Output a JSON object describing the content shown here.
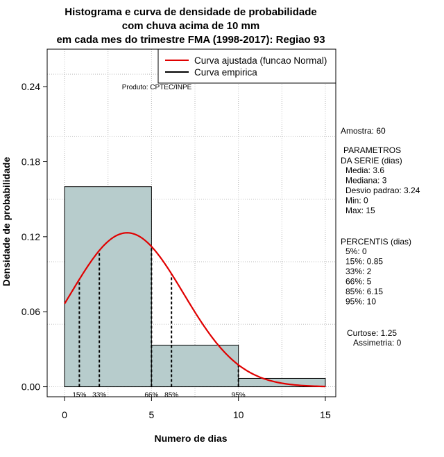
{
  "chart_data": {
    "type": "bar",
    "title": [
      "Histograma e curva de densidade de probabilidade",
      "com chuva acima de 10 mm",
      "em cada mes do trimestre FMA (1998-2017): Regiao 93"
    ],
    "xlabel": "Numero de dias",
    "ylabel": "Densidade de probabilidade",
    "xlim": [
      -1,
      15.6
    ],
    "ylim": [
      -0.008,
      0.27
    ],
    "xticks": [
      0,
      5,
      10,
      15
    ],
    "yticks": [
      0.0,
      0.06,
      0.12,
      0.18,
      0.24
    ],
    "ytick_labels": [
      "0.00",
      "0.06",
      "0.12",
      "0.18",
      "0.24"
    ],
    "grid": true,
    "bins": [
      {
        "start": 0,
        "end": 5,
        "density": 0.16
      },
      {
        "start": 5,
        "end": 10,
        "density": 0.0333
      },
      {
        "start": 10,
        "end": 15,
        "density": 0.0067
      }
    ],
    "bar_color": "#b7cccc",
    "normal_fit": {
      "mean": 3.6,
      "sd": 3.24,
      "x_from": 0,
      "x_to": 15,
      "color": "#e00000"
    },
    "legend": {
      "placement": "top-right",
      "entries": [
        {
          "label": "Curva ajustada (funcao Normal)",
          "color": "#e00000"
        },
        {
          "label": "Curva empirica",
          "color": "#000000"
        }
      ]
    },
    "credit": "Produto: CPTEC/INPE",
    "percentile_markers": [
      {
        "x": 0.85,
        "label": "15%"
      },
      {
        "x": 2,
        "label": "33%"
      },
      {
        "x": 5,
        "label": "66%"
      },
      {
        "x": 6.15,
        "label": "85%"
      },
      {
        "x": 10,
        "label": "95%"
      }
    ],
    "stats_panel": {
      "sample": "Amostra: 60",
      "params_header": [
        "PARAMETROS",
        "DA SERIE (dias)"
      ],
      "params": [
        "Media: 3.6",
        "Mediana: 3",
        "Desvio padrao: 3.24",
        "Min: 0",
        "Max: 15"
      ],
      "percentis_header": "PERCENTIS (dias)",
      "percentis": [
        "5%: 0",
        "15%: 0.85",
        "33%: 2",
        "66%: 5",
        "85%: 6.15",
        "95%: 10"
      ],
      "curtose": "Curtose: 1.25",
      "assimetria": "Assimetria: 0"
    }
  }
}
